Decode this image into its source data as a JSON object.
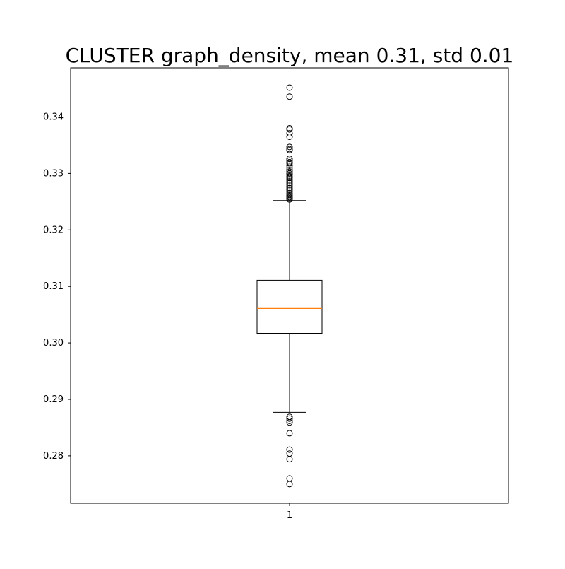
{
  "chart_data": {
    "type": "box",
    "title": "CLUSTER graph_density, mean 0.31, std 0.01",
    "xlabel": "",
    "ylabel": "",
    "categories": [
      "1"
    ],
    "ylim": [
      0.2716,
      0.3487
    ],
    "yticks": [
      {
        "value": 0.28,
        "label": "0.28"
      },
      {
        "value": 0.29,
        "label": "0.29"
      },
      {
        "value": 0.3,
        "label": "0.30"
      },
      {
        "value": 0.31,
        "label": "0.31"
      },
      {
        "value": 0.32,
        "label": "0.32"
      },
      {
        "value": 0.33,
        "label": "0.33"
      },
      {
        "value": 0.34,
        "label": "0.34"
      }
    ],
    "grid": false,
    "box": {
      "whisker_low": 0.2877,
      "q1": 0.3017,
      "median": 0.3061,
      "q3": 0.3111,
      "whisker_high": 0.3252
    },
    "outliers": [
      0.3452,
      0.3436,
      0.338,
      0.3378,
      0.3371,
      0.3365,
      0.3347,
      0.3343,
      0.3341,
      0.3326,
      0.3323,
      0.332,
      0.3318,
      0.3314,
      0.331,
      0.3306,
      0.3303,
      0.33,
      0.3298,
      0.3295,
      0.3292,
      0.3289,
      0.3286,
      0.3283,
      0.328,
      0.3277,
      0.3274,
      0.3271,
      0.3268,
      0.3265,
      0.3262,
      0.326,
      0.3258,
      0.3256,
      0.3254,
      0.2869,
      0.2866,
      0.2862,
      0.2859,
      0.284,
      0.2811,
      0.2804,
      0.2794,
      0.276,
      0.275
    ],
    "colors": {
      "box": "#000000",
      "median": "#ff7f0e",
      "outlier_edge": "#000000",
      "background": "#ffffff"
    }
  }
}
